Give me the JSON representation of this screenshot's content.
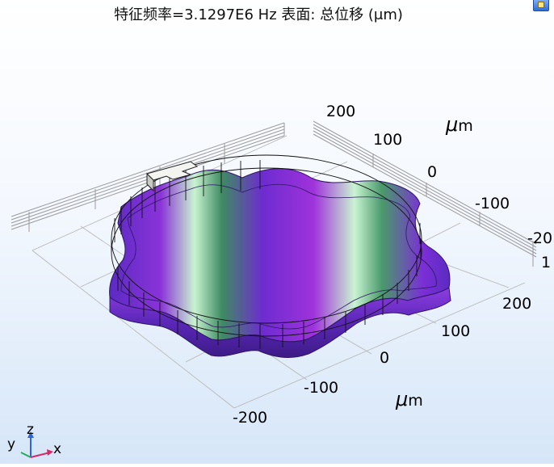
{
  "plot": {
    "title": "特征频率=3.1297E6 Hz    表面: 总位移 (μm)"
  },
  "axes": {
    "back_ticks": [
      "200",
      "100",
      "0",
      "-100",
      "-20",
      "1"
    ],
    "front_ticks": [
      "200",
      "100",
      "0",
      "-100",
      "-200"
    ],
    "unit_mu": "μ",
    "unit_m": "m"
  },
  "triad": {
    "z": "z",
    "y": "y",
    "x": "x"
  },
  "colors": {
    "ring_purple": "#6a2bc8",
    "ring_violet": "#9b2fd9",
    "ring_mint": "#b8f0c8",
    "ring_green": "#3e8f60",
    "mesh": "#111111"
  }
}
